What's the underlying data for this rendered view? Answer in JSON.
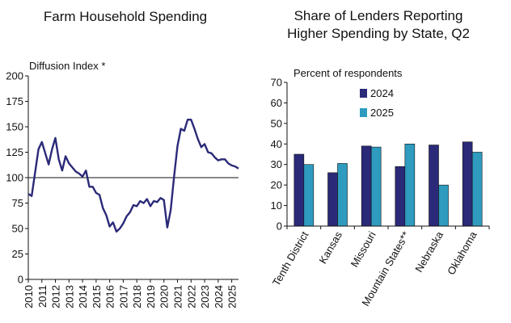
{
  "chart_data": [
    {
      "type": "line",
      "title": "Farm Household Spending",
      "ylabel": "Diffusion Index *",
      "ylim": [
        0,
        200
      ],
      "yticks": [
        0,
        25,
        50,
        75,
        100,
        125,
        150,
        175,
        200
      ],
      "xticks": [
        "2010",
        "2011",
        "2012",
        "2013",
        "2014",
        "2015",
        "2016",
        "2017",
        "2018",
        "2019",
        "2020",
        "2021",
        "2022",
        "2023",
        "2024",
        "2025"
      ],
      "xlim": [
        2010,
        2025.5
      ],
      "reference_line": 100,
      "series": [
        {
          "name": "Farm Household Spending",
          "color": "#2b2a78",
          "x": [
            2010.0,
            2010.25,
            2010.5,
            2010.75,
            2011.0,
            2011.25,
            2011.5,
            2011.75,
            2012.0,
            2012.25,
            2012.5,
            2012.75,
            2013.0,
            2013.25,
            2013.5,
            2013.75,
            2014.0,
            2014.25,
            2014.5,
            2014.75,
            2015.0,
            2015.25,
            2015.5,
            2015.75,
            2016.0,
            2016.25,
            2016.5,
            2016.75,
            2017.0,
            2017.25,
            2017.5,
            2017.75,
            2018.0,
            2018.25,
            2018.5,
            2018.75,
            2019.0,
            2019.25,
            2019.5,
            2019.75,
            2020.0,
            2020.25,
            2020.5,
            2020.75,
            2021.0,
            2021.25,
            2021.5,
            2021.75,
            2022.0,
            2022.25,
            2022.5,
            2022.75,
            2023.0,
            2023.25,
            2023.5,
            2023.75,
            2024.0,
            2024.25,
            2024.5,
            2024.75,
            2025.0,
            2025.25,
            2025.5
          ],
          "values": [
            84,
            82,
            105,
            128,
            135,
            124,
            113,
            128,
            139,
            118,
            107,
            121,
            114,
            110,
            106,
            104,
            101,
            107,
            91,
            91,
            85,
            83,
            70,
            63,
            52,
            56,
            47,
            50,
            55,
            62,
            66,
            73,
            72,
            77,
            75,
            79,
            72,
            77,
            76,
            80,
            78,
            51,
            68,
            101,
            131,
            148,
            146,
            157,
            157,
            148,
            138,
            130,
            133,
            125,
            124,
            120,
            117,
            118,
            118,
            114,
            112,
            111,
            109
          ]
        }
      ]
    },
    {
      "type": "bar",
      "title": [
        "Share of Lenders Reporting",
        "Higher Spending by State, Q2"
      ],
      "ylabel": "Percent of respondents",
      "ylim": [
        0,
        70
      ],
      "yticks": [
        0,
        10,
        20,
        30,
        40,
        50,
        60,
        70
      ],
      "categories": [
        "Tenth District",
        "Kansas",
        "Missouri",
        "Mountain States**",
        "Nebraska",
        "Oklahoma"
      ],
      "legend_position": "top-left",
      "series": [
        {
          "name": "2024",
          "color": "#2b2a78",
          "values": [
            35,
            26,
            39,
            29,
            39.5,
            41
          ]
        },
        {
          "name": "2025",
          "color": "#2e9bbf",
          "values": [
            30,
            30.5,
            38.5,
            40,
            20,
            36
          ]
        }
      ]
    }
  ]
}
